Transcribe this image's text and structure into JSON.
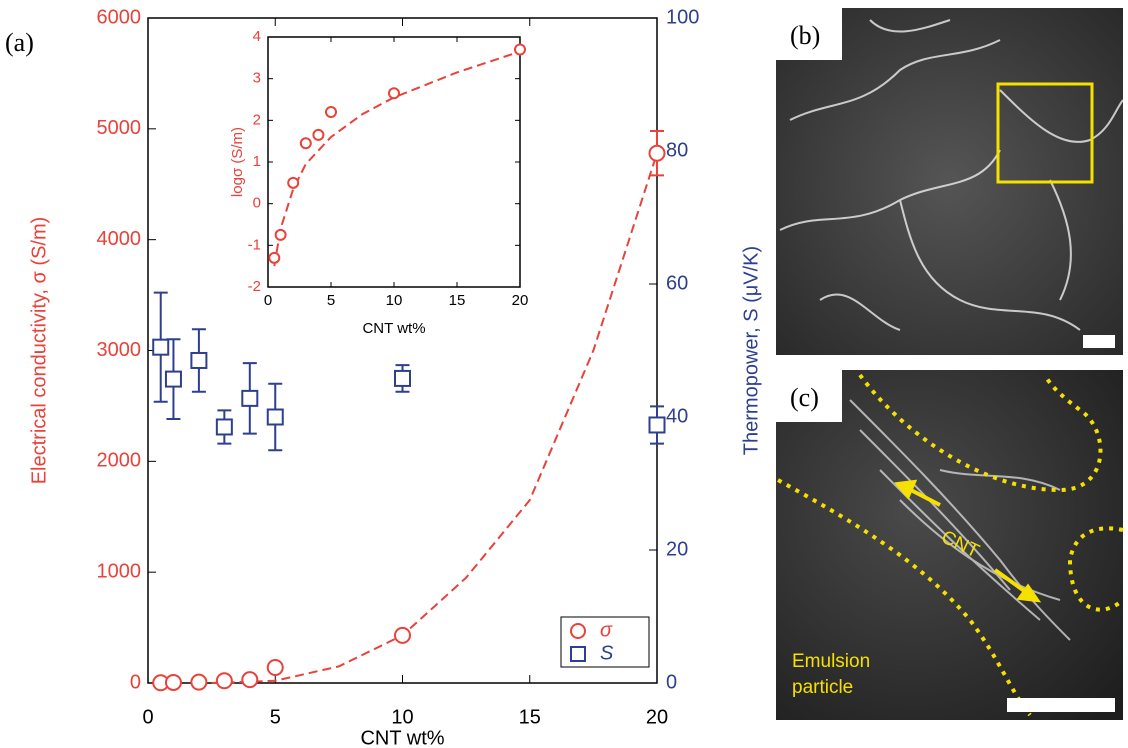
{
  "chart_data": [
    {
      "type": "scatter",
      "xlabel": "CNT wt%",
      "ylabel": "Electrical conductivity, σ (S/m)",
      "y2label": "Thermopower, S (μV/K)",
      "xlim": [
        0,
        20
      ],
      "xticks": [
        0,
        5,
        10,
        15,
        20
      ],
      "ylim": [
        0,
        6000
      ],
      "yticks": [
        0,
        1000,
        2000,
        3000,
        4000,
        5000,
        6000
      ],
      "y2lim": [
        0,
        100
      ],
      "y2ticks": [
        0,
        20,
        40,
        60,
        80,
        100
      ],
      "grid": false,
      "legend": "lower right",
      "series": [
        {
          "name": "σ",
          "color": "#e8423a",
          "marker": "circle",
          "x": [
            0.5,
            1,
            2,
            3,
            4,
            5,
            10,
            20
          ],
          "values": [
            2,
            5,
            8,
            20,
            30,
            140,
            430,
            4780
          ],
          "errors": [
            null,
            null,
            null,
            null,
            null,
            null,
            null,
            200
          ]
        },
        {
          "name": "S",
          "color": "#2e3f8f",
          "marker": "square",
          "axis": "y2",
          "x": [
            0.5,
            1,
            2,
            3,
            4,
            5,
            10,
            20
          ],
          "values": [
            50.5,
            45.7,
            48.5,
            38.5,
            42.8,
            40,
            45.8,
            38.8
          ],
          "errors": [
            8.2,
            6,
            4.7,
            2.5,
            5.3,
            5,
            2,
            2.8
          ]
        }
      ],
      "fit": {
        "color": "#e8423a",
        "x": [
          2.5,
          5,
          7.5,
          10,
          12.5,
          15,
          17.5,
          20
        ],
        "values": [
          0,
          20,
          150,
          430,
          950,
          1650,
          3000,
          4780
        ]
      }
    },
    {
      "type": "scatter",
      "xlabel": "CNT wt%",
      "ylabel": "logσ (S/m)",
      "xlim": [
        0,
        20
      ],
      "xticks": [
        0,
        5,
        10,
        15,
        20
      ],
      "ylim": [
        -2,
        4
      ],
      "yticks": [
        -2,
        -1,
        0,
        1,
        2,
        3,
        4
      ],
      "grid": false,
      "series": [
        {
          "color": "#e8423a",
          "marker": "circle",
          "x": [
            0.5,
            1,
            2,
            3,
            4,
            5,
            10,
            20
          ],
          "values": [
            -1.3,
            -0.75,
            0.5,
            1.45,
            1.65,
            2.2,
            2.65,
            3.7
          ]
        }
      ],
      "fit": {
        "color": "#e8423a",
        "x": [
          0.5,
          1,
          2,
          3,
          5,
          7.5,
          10,
          15,
          20
        ],
        "values": [
          -1.5,
          -0.6,
          0.35,
          0.95,
          1.6,
          2.15,
          2.55,
          3.15,
          3.65
        ]
      }
    }
  ],
  "panels": {
    "a": "(a)",
    "b": "(b)",
    "c": "(c)"
  },
  "image_labels": {
    "cnt": "CNT",
    "emulsion": [
      "Emulsion",
      "particle"
    ]
  }
}
